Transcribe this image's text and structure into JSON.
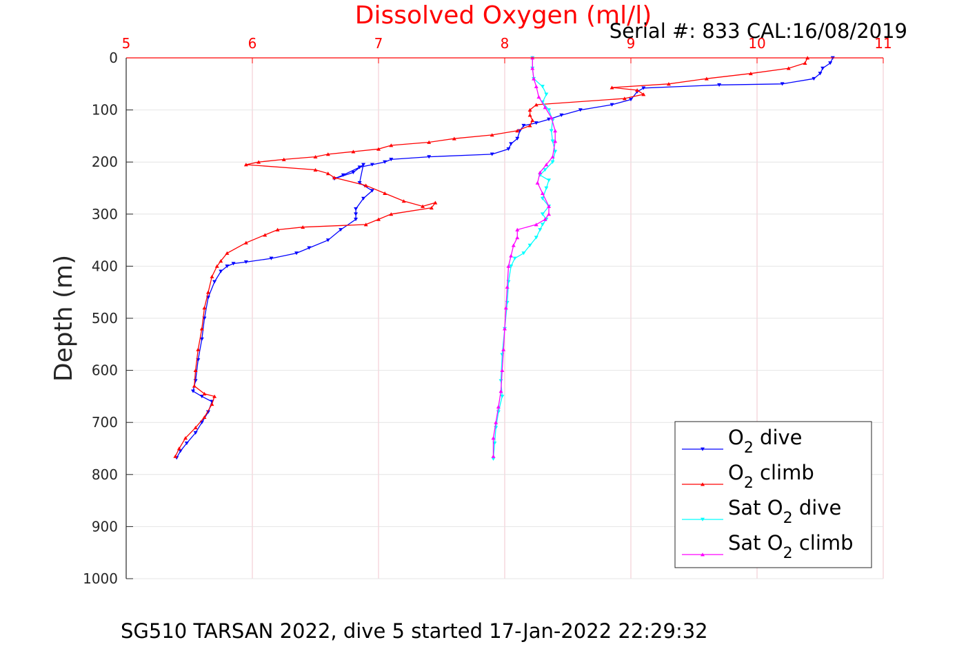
{
  "chart_data": {
    "type": "line",
    "title": "Dissolved Oxygen (ml/l)",
    "subtitle": "Serial #: 833  CAL:16/08/2019",
    "ylabel": "Depth (m)",
    "caption": "SG510 TARSAN 2022, dive 5 started 17-Jan-2022 22:29:32",
    "xlim": [
      5,
      11
    ],
    "ylim": [
      0,
      1000
    ],
    "y_reversed": true,
    "x_axis_position": "top",
    "x_ticks": [
      "5",
      "6",
      "7",
      "8",
      "9",
      "10",
      "11"
    ],
    "y_ticks": [
      "0",
      "100",
      "200",
      "300",
      "400",
      "500",
      "600",
      "700",
      "800",
      "900",
      "1000"
    ],
    "grid": true,
    "legend_position": "bottom-right",
    "series": [
      {
        "name": "O2 dive",
        "label_main": "O",
        "label_sub": "2",
        "label_rest": " dive",
        "color": "#0000ff",
        "marker": "triangle-down",
        "style": "line",
        "points": [
          [
            10.6,
            0
          ],
          [
            10.58,
            10
          ],
          [
            10.52,
            20
          ],
          [
            10.5,
            30
          ],
          [
            10.45,
            40
          ],
          [
            10.2,
            50
          ],
          [
            9.7,
            52
          ],
          [
            9.1,
            58
          ],
          [
            9.05,
            65
          ],
          [
            9.0,
            80
          ],
          [
            8.85,
            90
          ],
          [
            8.6,
            100
          ],
          [
            8.45,
            110
          ],
          [
            8.35,
            118
          ],
          [
            8.25,
            125
          ],
          [
            8.15,
            130
          ],
          [
            8.12,
            140
          ],
          [
            8.1,
            155
          ],
          [
            8.05,
            165
          ],
          [
            8.03,
            175
          ],
          [
            7.9,
            185
          ],
          [
            7.4,
            190
          ],
          [
            7.1,
            195
          ],
          [
            7.05,
            200
          ],
          [
            6.95,
            205
          ],
          [
            6.85,
            210
          ],
          [
            6.72,
            225
          ],
          [
            6.65,
            232
          ],
          [
            6.8,
            220
          ],
          [
            6.88,
            205
          ],
          [
            6.85,
            240
          ],
          [
            6.95,
            255
          ],
          [
            6.88,
            270
          ],
          [
            6.82,
            290
          ],
          [
            6.82,
            300
          ],
          [
            6.82,
            310
          ],
          [
            6.7,
            330
          ],
          [
            6.6,
            350
          ],
          [
            6.45,
            365
          ],
          [
            6.35,
            375
          ],
          [
            6.15,
            385
          ],
          [
            5.95,
            392
          ],
          [
            5.85,
            395
          ],
          [
            5.8,
            400
          ],
          [
            5.75,
            410
          ],
          [
            5.7,
            430
          ],
          [
            5.65,
            460
          ],
          [
            5.62,
            500
          ],
          [
            5.6,
            540
          ],
          [
            5.57,
            580
          ],
          [
            5.55,
            620
          ],
          [
            5.53,
            640
          ],
          [
            5.6,
            650
          ],
          [
            5.68,
            660
          ],
          [
            5.65,
            680
          ],
          [
            5.6,
            700
          ],
          [
            5.55,
            720
          ],
          [
            5.48,
            740
          ],
          [
            5.43,
            755
          ],
          [
            5.4,
            768
          ]
        ]
      },
      {
        "name": "O2 climb",
        "label_main": "O",
        "label_sub": "2",
        "label_rest": " climb",
        "color": "#ff0000",
        "marker": "triangle-up",
        "style": "line",
        "points": [
          [
            10.4,
            0
          ],
          [
            10.38,
            10
          ],
          [
            10.25,
            20
          ],
          [
            9.95,
            30
          ],
          [
            9.6,
            40
          ],
          [
            9.3,
            50
          ],
          [
            8.85,
            57
          ],
          [
            9.05,
            62
          ],
          [
            9.1,
            70
          ],
          [
            8.95,
            78
          ],
          [
            8.25,
            90
          ],
          [
            8.2,
            100
          ],
          [
            8.2,
            110
          ],
          [
            8.22,
            120
          ],
          [
            8.2,
            130
          ],
          [
            8.1,
            140
          ],
          [
            7.9,
            148
          ],
          [
            7.6,
            155
          ],
          [
            7.4,
            162
          ],
          [
            7.1,
            168
          ],
          [
            7.0,
            175
          ],
          [
            6.8,
            180
          ],
          [
            6.6,
            185
          ],
          [
            6.5,
            190
          ],
          [
            6.25,
            195
          ],
          [
            6.05,
            200
          ],
          [
            5.95,
            205
          ],
          [
            6.5,
            215
          ],
          [
            6.6,
            222
          ],
          [
            6.65,
            230
          ],
          [
            6.9,
            245
          ],
          [
            7.05,
            260
          ],
          [
            7.2,
            275
          ],
          [
            7.35,
            285
          ],
          [
            7.45,
            278
          ],
          [
            7.42,
            288
          ],
          [
            7.1,
            300
          ],
          [
            7.0,
            310
          ],
          [
            6.9,
            320
          ],
          [
            6.4,
            325
          ],
          [
            6.2,
            330
          ],
          [
            6.1,
            340
          ],
          [
            5.95,
            355
          ],
          [
            5.8,
            375
          ],
          [
            5.75,
            390
          ],
          [
            5.72,
            400
          ],
          [
            5.68,
            420
          ],
          [
            5.65,
            450
          ],
          [
            5.62,
            480
          ],
          [
            5.6,
            520
          ],
          [
            5.57,
            560
          ],
          [
            5.55,
            600
          ],
          [
            5.54,
            630
          ],
          [
            5.62,
            645
          ],
          [
            5.7,
            650
          ],
          [
            5.68,
            665
          ],
          [
            5.62,
            690
          ],
          [
            5.55,
            710
          ],
          [
            5.47,
            730
          ],
          [
            5.42,
            750
          ],
          [
            5.39,
            765
          ]
        ]
      },
      {
        "name": "Sat O2 dive",
        "label_main": "Sat O",
        "label_sub": "2",
        "label_rest": " dive",
        "color": "#00ffff",
        "marker": "triangle-down",
        "style": "line",
        "points": [
          [
            8.22,
            0
          ],
          [
            8.22,
            20
          ],
          [
            8.23,
            40
          ],
          [
            8.3,
            55
          ],
          [
            8.33,
            70
          ],
          [
            8.3,
            85
          ],
          [
            8.35,
            100
          ],
          [
            8.38,
            120
          ],
          [
            8.37,
            140
          ],
          [
            8.38,
            160
          ],
          [
            8.4,
            180
          ],
          [
            8.38,
            200
          ],
          [
            8.32,
            215
          ],
          [
            8.28,
            225
          ],
          [
            8.35,
            235
          ],
          [
            8.33,
            250
          ],
          [
            8.3,
            270
          ],
          [
            8.35,
            285
          ],
          [
            8.3,
            300
          ],
          [
            8.33,
            310
          ],
          [
            8.3,
            320
          ],
          [
            8.28,
            330
          ],
          [
            8.25,
            345
          ],
          [
            8.2,
            360
          ],
          [
            8.15,
            375
          ],
          [
            8.08,
            385
          ],
          [
            8.05,
            400
          ],
          [
            8.03,
            430
          ],
          [
            8.02,
            470
          ],
          [
            8.0,
            520
          ],
          [
            7.98,
            570
          ],
          [
            7.97,
            620
          ],
          [
            7.98,
            650
          ],
          [
            7.95,
            680
          ],
          [
            7.93,
            710
          ],
          [
            7.92,
            740
          ],
          [
            7.91,
            770
          ]
        ]
      },
      {
        "name": "Sat O2 climb",
        "label_main": "Sat O",
        "label_sub": "2",
        "label_rest": " climb",
        "color": "#ff00ff",
        "marker": "triangle-up",
        "style": "line",
        "points": [
          [
            8.22,
            0
          ],
          [
            8.22,
            20
          ],
          [
            8.23,
            40
          ],
          [
            8.25,
            55
          ],
          [
            8.27,
            75
          ],
          [
            8.32,
            95
          ],
          [
            8.37,
            115
          ],
          [
            8.4,
            140
          ],
          [
            8.4,
            160
          ],
          [
            8.38,
            190
          ],
          [
            8.33,
            205
          ],
          [
            8.28,
            220
          ],
          [
            8.26,
            240
          ],
          [
            8.3,
            260
          ],
          [
            8.35,
            285
          ],
          [
            8.35,
            300
          ],
          [
            8.32,
            310
          ],
          [
            8.25,
            320
          ],
          [
            8.1,
            330
          ],
          [
            8.1,
            345
          ],
          [
            8.07,
            360
          ],
          [
            8.05,
            380
          ],
          [
            8.03,
            400
          ],
          [
            8.02,
            440
          ],
          [
            8.01,
            480
          ],
          [
            8.0,
            520
          ],
          [
            7.99,
            560
          ],
          [
            7.98,
            600
          ],
          [
            7.97,
            640
          ],
          [
            7.95,
            670
          ],
          [
            7.93,
            700
          ],
          [
            7.91,
            730
          ],
          [
            7.91,
            765
          ]
        ]
      }
    ]
  }
}
